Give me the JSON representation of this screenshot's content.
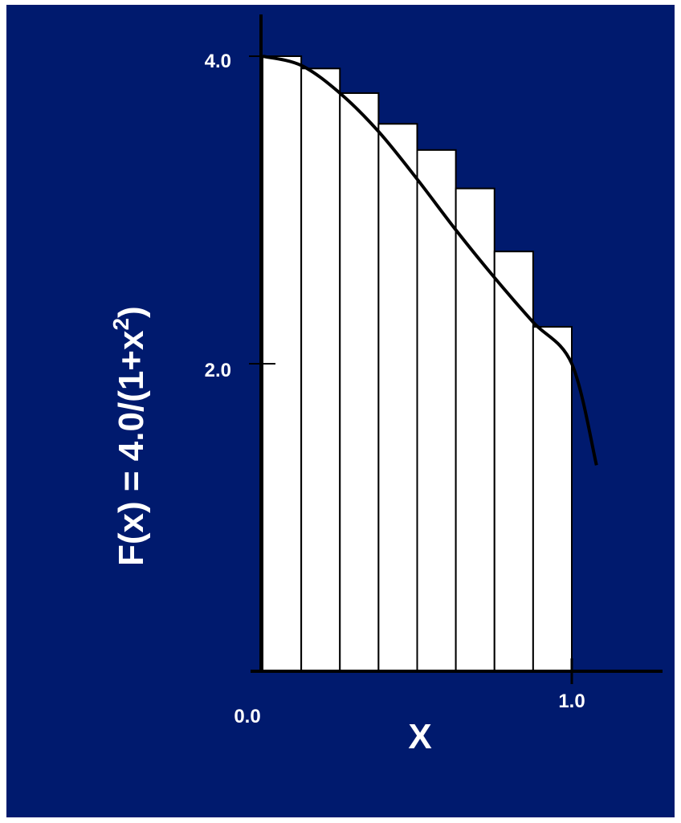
{
  "chart_data": {
    "type": "bar",
    "function_label": "F(x) = 4.0/(1+x",
    "function_label_sup": "2",
    "function_label_tail": ")",
    "xlabel": "X",
    "x_tick_labels": [
      "0.0",
      "1.0"
    ],
    "y_tick_labels": [
      "4.0",
      "2.0"
    ],
    "x_ticks": [
      0.0,
      1.0
    ],
    "y_ticks": [
      4.0,
      2.0
    ],
    "xlim": [
      0,
      1.3
    ],
    "ylim": [
      0,
      4.0
    ],
    "bars": [
      {
        "x0": 0.0,
        "x1": 0.125,
        "height": 4.0
      },
      {
        "x0": 0.125,
        "x1": 0.25,
        "height": 3.92
      },
      {
        "x0": 0.25,
        "x1": 0.375,
        "height": 3.76
      },
      {
        "x0": 0.375,
        "x1": 0.5,
        "height": 3.56
      },
      {
        "x0": 0.5,
        "x1": 0.625,
        "height": 3.39
      },
      {
        "x0": 0.625,
        "x1": 0.75,
        "height": 3.14
      },
      {
        "x0": 0.75,
        "x1": 0.875,
        "height": 2.73
      },
      {
        "x0": 0.875,
        "x1": 1.0,
        "height": 2.24
      }
    ],
    "curve": {
      "x": [
        0.0,
        0.125,
        0.25,
        0.375,
        0.5,
        0.625,
        0.75,
        0.875,
        1.0,
        1.08
      ],
      "y": [
        4.0,
        3.94,
        3.76,
        3.51,
        3.2,
        2.87,
        2.56,
        2.27,
        2.0,
        1.34
      ]
    },
    "colors": {
      "background": "#001a6e",
      "bar_fill": "#ffffff",
      "bar_stroke": "#000000",
      "curve": "#000000",
      "axis": "#000000",
      "text": "#ffffff"
    }
  }
}
